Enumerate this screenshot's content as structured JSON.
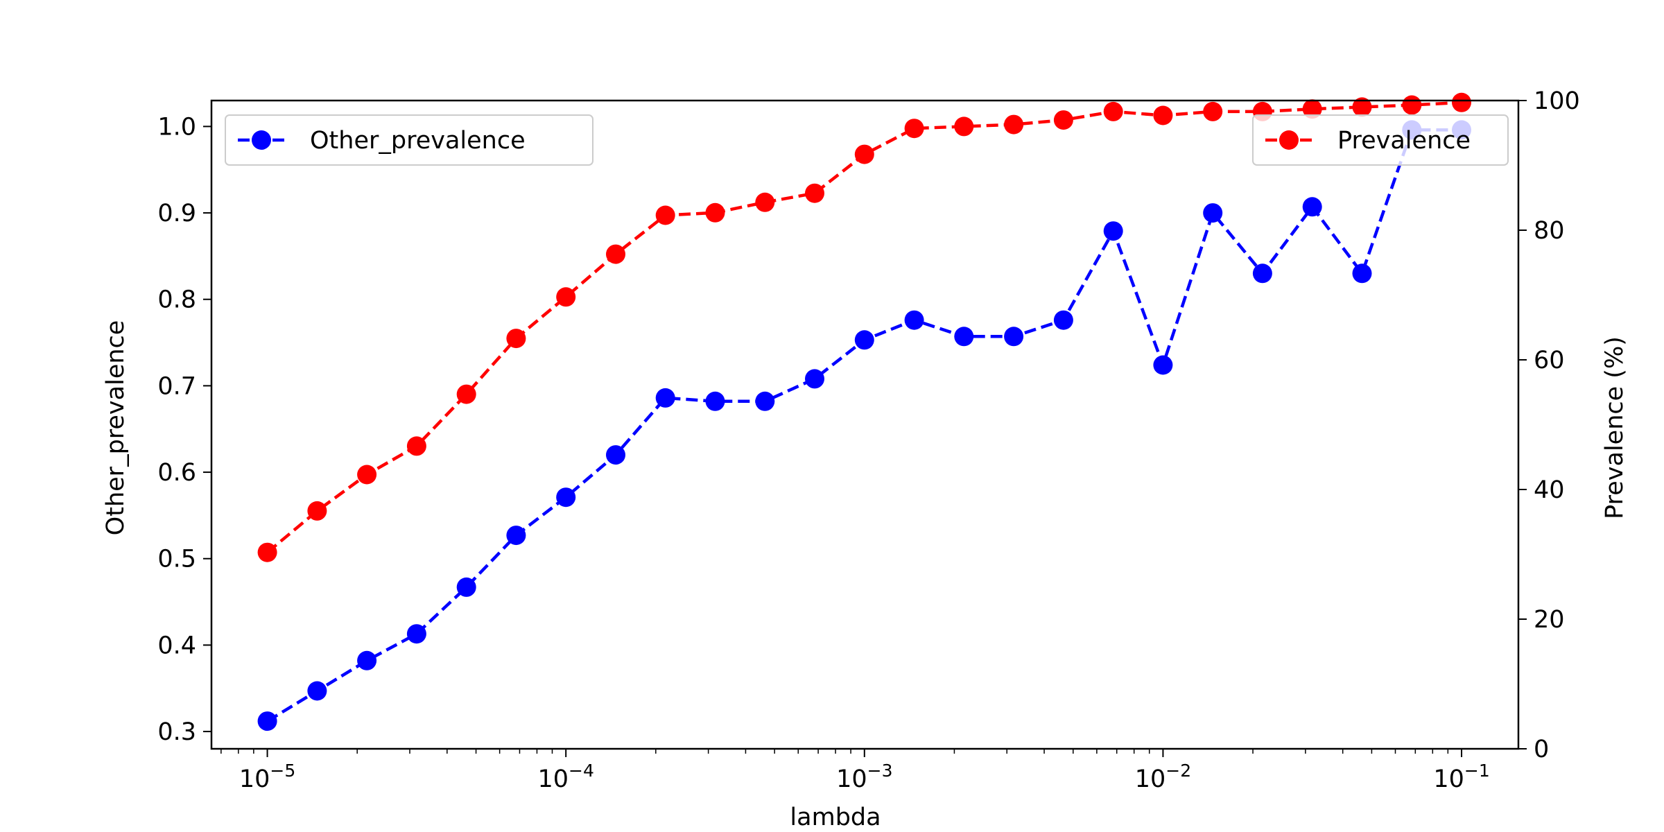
{
  "chart_data": {
    "type": "line",
    "xlabel": "lambda",
    "ylabel_left": "Other_prevalence",
    "ylabel_right": "Prevalence (%)",
    "xscale": "log",
    "xlim": [
      6.5e-06,
      0.155
    ],
    "ylim_left": [
      0.28,
      1.03
    ],
    "ylim_right": [
      0,
      100
    ],
    "x_ticks": [
      {
        "value": 1e-05,
        "base": "10",
        "exp": "−5"
      },
      {
        "value": 0.0001,
        "base": "10",
        "exp": "−4"
      },
      {
        "value": 0.001,
        "base": "10",
        "exp": "−3"
      },
      {
        "value": 0.01,
        "base": "10",
        "exp": "−2"
      },
      {
        "value": 0.1,
        "base": "10",
        "exp": "−1"
      }
    ],
    "y_ticks_left": [
      "0.3",
      "0.4",
      "0.5",
      "0.6",
      "0.7",
      "0.8",
      "0.9",
      "1.0"
    ],
    "y_ticks_right": [
      "0",
      "20",
      "40",
      "60",
      "80",
      "100"
    ],
    "grid": false,
    "x": [
      1e-05,
      1.468e-05,
      2.154e-05,
      3.162e-05,
      4.642e-05,
      6.813e-05,
      0.0001,
      0.0001468,
      0.0002154,
      0.0003162,
      0.0004642,
      0.0006813,
      0.001,
      0.001468,
      0.002154,
      0.003162,
      0.004642,
      0.006813,
      0.01,
      0.01468,
      0.02154,
      0.03162,
      0.04642,
      0.06813,
      0.1
    ],
    "series": [
      {
        "name": "Other_prevalence",
        "axis": "left",
        "color": "#0000ff",
        "linestyle": "dashed",
        "marker": "circle",
        "values": [
          0.312,
          0.347,
          0.382,
          0.413,
          0.467,
          0.527,
          0.571,
          0.62,
          0.686,
          0.682,
          0.682,
          0.708,
          0.753,
          0.776,
          0.757,
          0.757,
          0.776,
          0.879,
          0.724,
          0.9,
          0.83,
          0.907,
          0.83,
          0.996,
          0.996
        ]
      },
      {
        "name": "Prevalence",
        "axis": "right",
        "color": "#ff0000",
        "linestyle": "dashed",
        "marker": "circle",
        "values": [
          30.3,
          36.7,
          42.3,
          46.7,
          54.7,
          63.3,
          69.7,
          76.3,
          82.3,
          82.7,
          84.3,
          85.7,
          91.7,
          95.7,
          96.0,
          96.3,
          97.0,
          98.3,
          97.7,
          98.3,
          98.3,
          98.7,
          99.0,
          99.3,
          99.7
        ]
      }
    ],
    "legends": [
      {
        "series": "Other_prevalence",
        "placement": "upper left"
      },
      {
        "series": "Prevalence",
        "placement": "upper right"
      }
    ]
  }
}
